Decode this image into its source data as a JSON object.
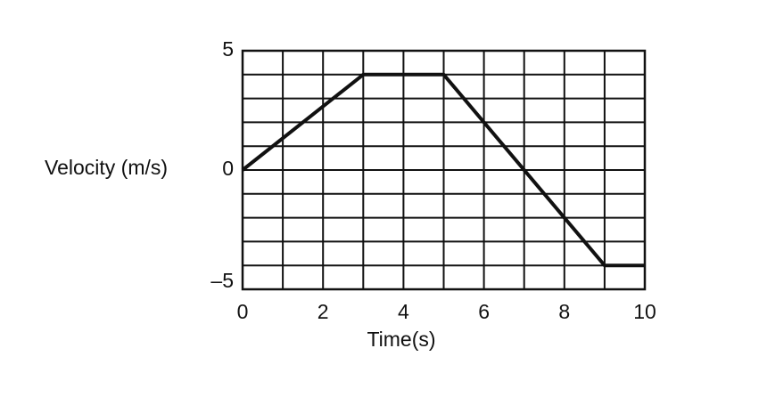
{
  "chart_data": {
    "type": "line",
    "x_label": "Time(s)",
    "y_label": "Velocity (m/s)",
    "x": [
      0,
      3,
      5,
      9,
      10
    ],
    "series": [
      {
        "color": "#111111",
        "values": [
          0,
          4,
          4,
          -4,
          -4
        ]
      }
    ],
    "xlim": [
      0,
      10
    ],
    "ylim": [
      -5,
      5
    ],
    "xticks": [
      0,
      2,
      4,
      6,
      8,
      10
    ],
    "yticks": [
      5,
      0,
      {
        "value": -5,
        "label": "–5"
      }
    ],
    "xgrid": [
      0,
      1,
      2,
      3,
      4,
      5,
      6,
      7,
      8,
      9,
      10
    ],
    "ygrid": [
      -5,
      -4,
      -3,
      -2,
      -1,
      0,
      1,
      2,
      3,
      4,
      5
    ],
    "grid": true
  }
}
